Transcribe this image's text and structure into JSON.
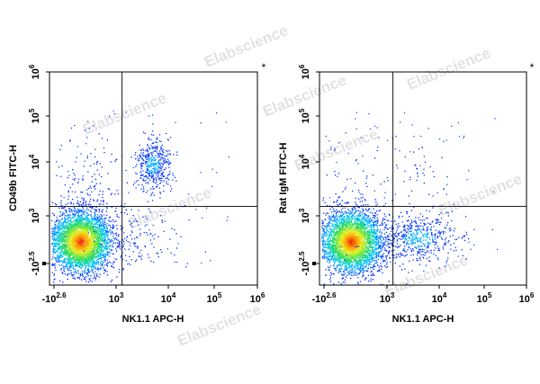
{
  "watermark": "Elabscience",
  "chart_data": [
    {
      "type": "scatter",
      "xlabel": "NK1.1 APC-H",
      "ylabel": "CD49b FITC-H",
      "marker": "*",
      "x_scale": "biexponential",
      "y_scale": "biexponential",
      "x_ticks": [
        {
          "base": "-10",
          "exp": "2.6"
        },
        {
          "base": "10",
          "exp": "3"
        },
        {
          "base": "10",
          "exp": "4"
        },
        {
          "base": "10",
          "exp": "5"
        },
        {
          "base": "10",
          "exp": "6"
        }
      ],
      "y_ticks": [
        {
          "base": "-10",
          "exp": "2.5"
        },
        {
          "base": "10",
          "exp": "3"
        },
        {
          "base": "10",
          "exp": "4"
        },
        {
          "base": "10",
          "exp": "5"
        },
        {
          "base": "10",
          "exp": "6"
        }
      ],
      "gate": {
        "x": 1300,
        "y": 1500
      },
      "populations": [
        {
          "name": "main",
          "center": [
            200,
            250
          ],
          "count": 3600
        },
        {
          "name": "upper_right",
          "center": [
            5000,
            9000
          ],
          "count": 420
        },
        {
          "name": "upper_left",
          "center": [
            350,
            4000
          ],
          "count": 130
        },
        {
          "name": "lower_right",
          "center": [
            2500,
            300
          ],
          "count": 120
        }
      ],
      "quadrant_percent": {
        "UL": null,
        "UR": null,
        "LL": null,
        "LR": null
      }
    },
    {
      "type": "scatter",
      "xlabel": "NK1.1 APC-H",
      "ylabel": "Rat IgM FITC-H",
      "marker": "*",
      "x_scale": "biexponential",
      "y_scale": "biexponential",
      "x_ticks": [
        {
          "base": "-10",
          "exp": "2.6"
        },
        {
          "base": "10",
          "exp": "3"
        },
        {
          "base": "10",
          "exp": "4"
        },
        {
          "base": "10",
          "exp": "5"
        },
        {
          "base": "10",
          "exp": "6"
        }
      ],
      "y_ticks": [
        {
          "base": "-10",
          "exp": "2.5"
        },
        {
          "base": "10",
          "exp": "3"
        },
        {
          "base": "10",
          "exp": "4"
        },
        {
          "base": "10",
          "exp": "5"
        },
        {
          "base": "10",
          "exp": "6"
        }
      ],
      "gate": {
        "x": 1300,
        "y": 1500
      },
      "populations": [
        {
          "name": "main",
          "center": [
            200,
            250
          ],
          "count": 3600
        },
        {
          "name": "lower_right",
          "center": [
            4000,
            350
          ],
          "count": 500
        },
        {
          "name": "upper_right",
          "center": [
            5000,
            6000
          ],
          "count": 40
        },
        {
          "name": "upper_left",
          "center": [
            350,
            5000
          ],
          "count": 40
        }
      ],
      "quadrant_percent": {
        "UL": null,
        "UR": null,
        "LL": null,
        "LR": null
      }
    }
  ]
}
